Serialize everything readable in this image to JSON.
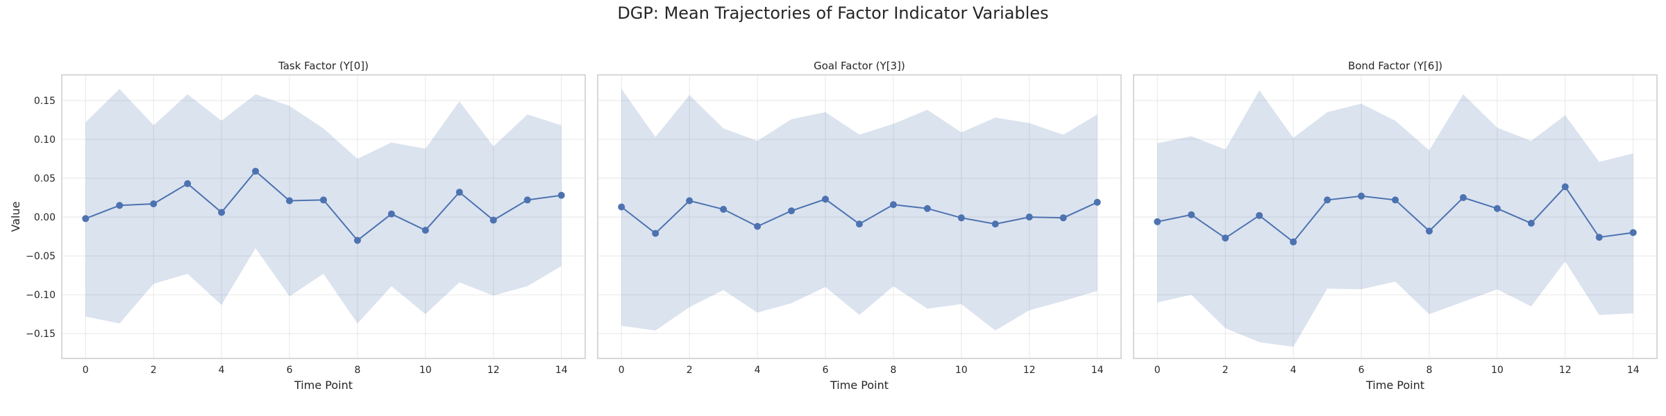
{
  "figure": {
    "suptitle": "DGP: Mean Trajectories of Factor Indicator Variables"
  },
  "chart_data": [
    {
      "type": "line",
      "title": "Task Factor (Y[0])",
      "xlabel": "Time Point",
      "ylabel": "Value",
      "x": [
        0,
        1,
        2,
        3,
        4,
        5,
        6,
        7,
        8,
        9,
        10,
        11,
        12,
        13,
        14
      ],
      "xticks": [
        "0",
        "2",
        "4",
        "6",
        "8",
        "10",
        "12",
        "14"
      ],
      "yticks": [
        "0.15",
        "0.10",
        "0.05",
        "0.00",
        "−0.05",
        "−0.10",
        "−0.15"
      ],
      "xlim": [
        -0.7,
        14.7
      ],
      "ylim": [
        -0.182,
        0.183
      ],
      "grid": true,
      "series": [
        {
          "mean": [
            -0.002,
            0.015,
            0.017,
            0.043,
            0.006,
            0.059,
            0.021,
            0.022,
            -0.03,
            0.004,
            -0.017,
            0.032,
            -0.004,
            0.022,
            0.028
          ],
          "upper": [
            0.122,
            0.165,
            0.118,
            0.158,
            0.124,
            0.158,
            0.143,
            0.114,
            0.075,
            0.096,
            0.088,
            0.149,
            0.091,
            0.132,
            0.118
          ],
          "lower": [
            -0.128,
            -0.137,
            -0.086,
            -0.073,
            -0.113,
            -0.04,
            -0.102,
            -0.073,
            -0.137,
            -0.089,
            -0.125,
            -0.084,
            -0.101,
            -0.089,
            -0.063
          ]
        }
      ]
    },
    {
      "type": "line",
      "title": "Goal Factor (Y[3])",
      "xlabel": "Time Point",
      "ylabel": "",
      "x": [
        0,
        1,
        2,
        3,
        4,
        5,
        6,
        7,
        8,
        9,
        10,
        11,
        12,
        13,
        14
      ],
      "xticks": [
        "0",
        "2",
        "4",
        "6",
        "8",
        "10",
        "12",
        "14"
      ],
      "yticks": [],
      "xlim": [
        -0.7,
        14.7
      ],
      "ylim": [
        -0.182,
        0.183
      ],
      "grid": true,
      "series": [
        {
          "mean": [
            0.013,
            -0.021,
            0.021,
            0.01,
            -0.012,
            0.008,
            0.023,
            -0.009,
            0.016,
            0.011,
            -0.001,
            -0.009,
            0.0,
            -0.001,
            0.019
          ],
          "upper": [
            0.165,
            0.103,
            0.157,
            0.114,
            0.098,
            0.126,
            0.135,
            0.106,
            0.12,
            0.138,
            0.109,
            0.128,
            0.121,
            0.106,
            0.132
          ],
          "lower": [
            -0.14,
            -0.146,
            -0.116,
            -0.094,
            -0.123,
            -0.111,
            -0.09,
            -0.126,
            -0.089,
            -0.118,
            -0.112,
            -0.146,
            -0.12,
            -0.108,
            -0.095
          ]
        }
      ]
    },
    {
      "type": "line",
      "title": "Bond Factor (Y[6])",
      "xlabel": "Time Point",
      "ylabel": "",
      "x": [
        0,
        1,
        2,
        3,
        4,
        5,
        6,
        7,
        8,
        9,
        10,
        11,
        12,
        13,
        14
      ],
      "xticks": [
        "0",
        "2",
        "4",
        "6",
        "8",
        "10",
        "12",
        "14"
      ],
      "yticks": [],
      "xlim": [
        -0.7,
        14.7
      ],
      "ylim": [
        -0.182,
        0.183
      ],
      "grid": true,
      "series": [
        {
          "mean": [
            -0.006,
            0.003,
            -0.027,
            0.002,
            -0.032,
            0.022,
            0.027,
            0.022,
            -0.018,
            0.025,
            0.011,
            -0.008,
            0.039,
            -0.026,
            -0.02
          ],
          "upper": [
            0.095,
            0.104,
            0.087,
            0.163,
            0.102,
            0.135,
            0.146,
            0.124,
            0.086,
            0.158,
            0.115,
            0.098,
            0.131,
            0.071,
            0.082
          ],
          "lower": [
            -0.11,
            -0.1,
            -0.143,
            -0.161,
            -0.167,
            -0.092,
            -0.093,
            -0.083,
            -0.125,
            -0.109,
            -0.093,
            -0.115,
            -0.057,
            -0.126,
            -0.124
          ]
        }
      ]
    }
  ],
  "colors": {
    "line": "#4c72b0",
    "band": "#4c72b0",
    "grid": "#e6e6e6",
    "frame": "#cccccc",
    "text": "#262626"
  }
}
